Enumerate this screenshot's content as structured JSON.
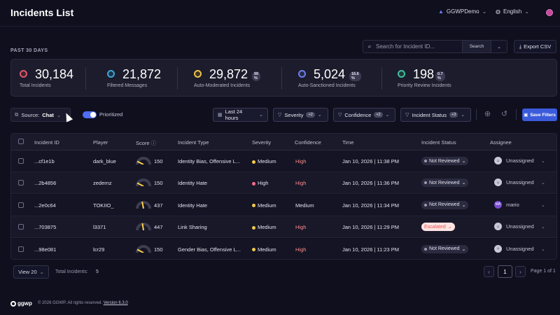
{
  "header": {
    "title": "Incidents List",
    "org": "GGWPDemo",
    "language": "English"
  },
  "period_label": "PAST 30 DAYS",
  "search": {
    "placeholder": "Search for Incident ID...",
    "button": "Search"
  },
  "export_label": "Export CSV",
  "stats": [
    {
      "value": "30,184",
      "label": "Total Incidents",
      "pct": "",
      "color": "#e0566a"
    },
    {
      "value": "21,872",
      "label": "Filtered Messages",
      "pct": "",
      "color": "#3aa7d9"
    },
    {
      "value": "29,872",
      "label": "Auto-Moderated Incidents",
      "pct": "99 %",
      "color": "#f0c04a"
    },
    {
      "value": "5,024",
      "label": "Auto-Sanctioned Incidents",
      "pct": "16.6 %",
      "color": "#6e7ef0"
    },
    {
      "value": "198",
      "label": "Priority Review Incidents",
      "pct": "0.7 %",
      "color": "#3fbfa0"
    }
  ],
  "filters": {
    "source_label": "Source:",
    "source_value": "Chat",
    "prioritized_label": "Prioritized",
    "time": "Last 24 hours",
    "severity": "Severity",
    "severity_badge": "+2",
    "confidence": "Confidence",
    "confidence_badge": "+2",
    "status": "Incident Status",
    "status_badge": "+3",
    "save": "Save Filters"
  },
  "table": {
    "headers": [
      "Incident ID",
      "Player",
      "Score",
      "Incident Type",
      "Severity",
      "Confidence",
      "Time",
      "Incident Status",
      "Assignee"
    ],
    "rows": [
      {
        "id": "...cf1e1b",
        "player": "dark_blue",
        "score": "150",
        "score_level": 0.15,
        "type": "Identity Bias, Offensive L...",
        "severity": "Medium",
        "sev_color": "#f2c94c",
        "confidence": "High",
        "time": "Jan 10, 2026 | 11:38 PM",
        "status": "Not Reviewed",
        "assignee": "Unassigned",
        "assignee_initials": ""
      },
      {
        "id": "...2b4856",
        "player": "zedernz",
        "score": "150",
        "score_level": 0.15,
        "type": "Identity Hate",
        "severity": "High",
        "sev_color": "#ff6b8b",
        "confidence": "High",
        "time": "Jan 10, 2026 | 11:36 PM",
        "status": "Not Reviewed",
        "assignee": "Unassigned",
        "assignee_initials": ""
      },
      {
        "id": "...2e0c64",
        "player": "TOKIIO_",
        "score": "437",
        "score_level": 0.44,
        "type": "Identity Hate",
        "severity": "Medium",
        "sev_color": "#f2c94c",
        "confidence": "Medium",
        "time": "Jan 10, 2026 | 11:34 PM",
        "status": "Not Reviewed",
        "assignee": "mario",
        "assignee_initials": "MA"
      },
      {
        "id": "...703875",
        "player": "l3371",
        "score": "447",
        "score_level": 0.45,
        "type": "Link Sharing",
        "severity": "Medium",
        "sev_color": "#f2c94c",
        "confidence": "High",
        "time": "Jan 10, 2026 | 11:29 PM",
        "status": "Escalated",
        "assignee": "Unassigned",
        "assignee_initials": ""
      },
      {
        "id": "...98e081",
        "player": "lcr29",
        "score": "150",
        "score_level": 0.15,
        "type": "Gender Bias, Offensive L...",
        "severity": "Medium",
        "sev_color": "#f2c94c",
        "confidence": "High",
        "time": "Jan 10, 2026 | 11:23 PM",
        "status": "Not Reviewed",
        "assignee": "Unassigned",
        "assignee_initials": ""
      }
    ]
  },
  "pagination": {
    "view": "View 20",
    "total_label": "Total Incidents:",
    "total_value": "5",
    "page": "1",
    "page_of": "Page 1 of 1"
  },
  "footer": {
    "brand": "ggwp",
    "copyright": "© 2026 GGWP. All rights reserved.",
    "version": "Version 6.3.0"
  }
}
